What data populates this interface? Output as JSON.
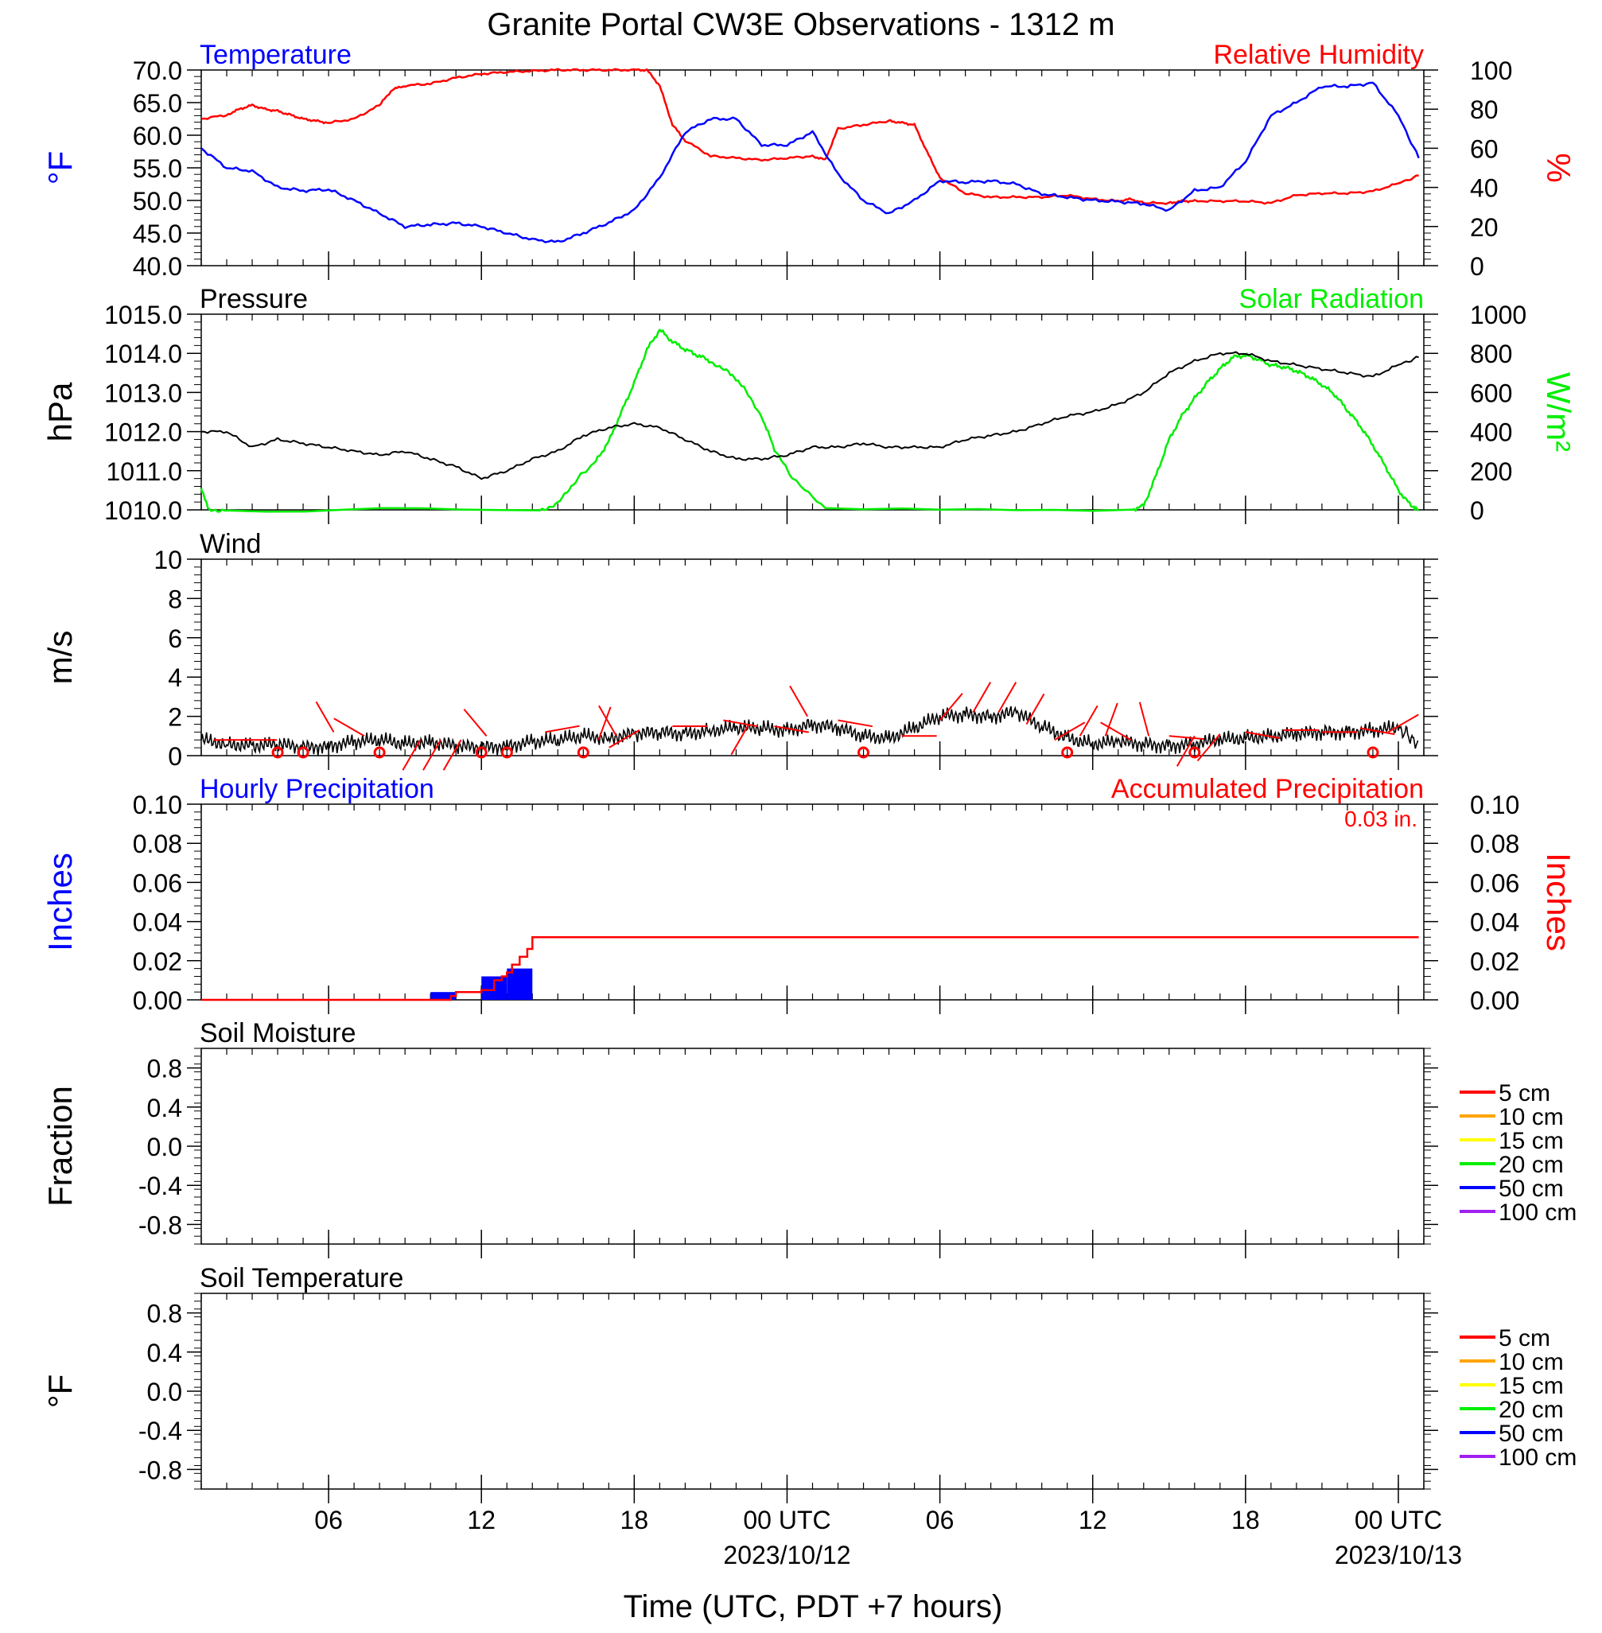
{
  "title": "Granite Portal CW3E Observations - 1312 m",
  "x_axis": {
    "title": "Time (UTC, PDT +7 hours)",
    "range_hours": [
      0,
      48
    ],
    "tick_labels": [
      {
        "hour": 5,
        "label": "06"
      },
      {
        "hour": 11,
        "label": "12"
      },
      {
        "hour": 17,
        "label": "18"
      },
      {
        "hour": 23,
        "label": "00 UTC",
        "date": "2023/10/12"
      },
      {
        "hour": 29,
        "label": "06"
      },
      {
        "hour": 35,
        "label": "12"
      },
      {
        "hour": 41,
        "label": "18"
      },
      {
        "hour": 47,
        "label": "00 UTC",
        "date": "2023/10/13"
      }
    ]
  },
  "colors": {
    "temperature": "#0000ff",
    "humidity": "#ff0000",
    "pressure": "#000000",
    "solar": "#00ee00",
    "wind": "#000000",
    "wind_barb": "#ff0000",
    "hourly_precip": "#0000ff",
    "accum_precip": "#ff0000"
  },
  "panels": {
    "temp_rh": {
      "left_title": "Temperature",
      "right_title": "Relative Humidity",
      "left_ylabel": "°F",
      "right_ylabel": "%",
      "left_ticks": [
        "70.0",
        "65.0",
        "60.0",
        "55.0",
        "50.0",
        "45.0",
        "40.0"
      ],
      "right_ticks": [
        "100",
        "80",
        "60",
        "40",
        "20",
        "0"
      ]
    },
    "pressure_solar": {
      "left_title": "Pressure",
      "right_title": "Solar Radiation",
      "left_ylabel": "hPa",
      "right_ylabel": "W/m²",
      "left_ticks": [
        "1015.0",
        "1014.0",
        "1013.0",
        "1012.0",
        "1011.0",
        "1010.0"
      ],
      "right_ticks": [
        "1000",
        "800",
        "600",
        "400",
        "200",
        "0"
      ]
    },
    "wind": {
      "left_title": "Wind",
      "left_ylabel": "m/s",
      "left_ticks": [
        "10",
        "8",
        "6",
        "4",
        "2",
        "0"
      ]
    },
    "precip": {
      "left_title": "Hourly Precipitation",
      "right_title": "Accumulated Precipitation",
      "total_label": "0.03 in.",
      "left_ylabel": "Inches",
      "right_ylabel": "Inches",
      "left_ticks": [
        "0.10",
        "0.08",
        "0.06",
        "0.04",
        "0.02",
        "0.00"
      ],
      "right_ticks": [
        "0.10",
        "0.08",
        "0.06",
        "0.04",
        "0.02",
        "0.00"
      ]
    },
    "soil_moisture": {
      "left_title": "Soil Moisture",
      "left_ylabel": "Fraction",
      "left_ticks": [
        "0.8",
        "0.4",
        "0.0",
        "-0.4",
        "-0.8"
      ],
      "legend": [
        {
          "label": "5 cm",
          "color": "#ff0000"
        },
        {
          "label": "10 cm",
          "color": "#ffa500"
        },
        {
          "label": "15 cm",
          "color": "#ffff00"
        },
        {
          "label": "20 cm",
          "color": "#00ee00"
        },
        {
          "label": "50 cm",
          "color": "#0000ff"
        },
        {
          "label": "100 cm",
          "color": "#a020f0"
        }
      ]
    },
    "soil_temp": {
      "left_title": "Soil Temperature",
      "left_ylabel": "°F",
      "left_ticks": [
        "0.8",
        "0.4",
        "0.0",
        "-0.4",
        "-0.8"
      ],
      "legend": [
        {
          "label": "5 cm",
          "color": "#ff0000"
        },
        {
          "label": "10 cm",
          "color": "#ffa500"
        },
        {
          "label": "15 cm",
          "color": "#ffff00"
        },
        {
          "label": "20 cm",
          "color": "#00ee00"
        },
        {
          "label": "50 cm",
          "color": "#0000ff"
        },
        {
          "label": "100 cm",
          "color": "#a020f0"
        }
      ]
    }
  },
  "chart_data": [
    {
      "type": "line",
      "panel": "temp_rh",
      "xlabel": "Time (UTC, PDT +7 hours)",
      "ylabel": "°F",
      "ylim": [
        40,
        70
      ],
      "series": [
        {
          "name": "Temperature",
          "axis": "left",
          "x": [
            0,
            1,
            2,
            3,
            4,
            5,
            6,
            7,
            8,
            9,
            10,
            11,
            12,
            13,
            14,
            15,
            16,
            17,
            18,
            19,
            20,
            21,
            22,
            23,
            24,
            25,
            26,
            27,
            28,
            29,
            30,
            31,
            32,
            33,
            34,
            35,
            36,
            37,
            38,
            39,
            40,
            41,
            42,
            43,
            44,
            45,
            46,
            47,
            47.8
          ],
          "y": [
            58,
            55,
            54.5,
            52,
            51.5,
            51.7,
            50,
            48,
            46,
            46.3,
            46.5,
            46,
            45,
            44,
            43.6,
            45,
            46.6,
            48.5,
            53.5,
            60.5,
            62.5,
            62.5,
            58.5,
            58.5,
            60.5,
            54,
            50,
            48,
            50,
            53,
            52.8,
            53,
            52.5,
            51,
            50.5,
            50,
            49.8,
            49.5,
            48.5,
            51.5,
            52,
            56,
            63,
            65,
            67.5,
            67.5,
            68,
            63,
            56.5
          ]
        },
        {
          "name": "Relative Humidity",
          "axis": "right",
          "ylim": [
            0,
            100
          ],
          "x": [
            0,
            1,
            1.5,
            2,
            2.5,
            3,
            3.5,
            4,
            4.5,
            5,
            6,
            7,
            7.5,
            8,
            9,
            10,
            11,
            12,
            13,
            14,
            15,
            16,
            17,
            17.5,
            18,
            18.5,
            19,
            20,
            21,
            22,
            23,
            24,
            24.5,
            25,
            26,
            27,
            27.5,
            28,
            28.5,
            29,
            30,
            31,
            32,
            33,
            34,
            35,
            36,
            36.5,
            37,
            38,
            38.5,
            39,
            40,
            41,
            42,
            43,
            44,
            45,
            46,
            47,
            47.8
          ],
          "y": [
            75,
            77,
            80,
            82,
            80,
            79,
            77,
            75,
            74,
            73,
            75,
            82,
            90,
            92,
            93,
            96,
            98,
            99,
            99.5,
            100,
            100,
            100,
            100,
            100,
            92,
            72,
            64,
            56,
            55,
            54,
            55,
            56,
            54,
            70,
            72,
            74,
            73,
            72,
            58,
            45,
            37,
            35,
            35,
            35,
            36,
            34,
            33,
            34,
            32,
            32,
            33,
            33,
            33,
            33,
            32,
            36,
            37,
            37,
            38,
            42,
            46
          ]
        }
      ]
    },
    {
      "type": "line",
      "panel": "pressure_solar",
      "xlabel": "Time (UTC, PDT +7 hours)",
      "ylabel": "hPa",
      "ylim": [
        1010,
        1015
      ],
      "series": [
        {
          "name": "Pressure",
          "axis": "left",
          "x": [
            0,
            1,
            2,
            3,
            4,
            5,
            6,
            7,
            8,
            9,
            10,
            11,
            12,
            13,
            14,
            15,
            16,
            17,
            18,
            19,
            20,
            21,
            22,
            23,
            24,
            25,
            26,
            27,
            28,
            29,
            30,
            31,
            32,
            33,
            34,
            35,
            36,
            37,
            38,
            39,
            40,
            41,
            42,
            43,
            44,
            45,
            46,
            47,
            47.8
          ],
          "y": [
            1012,
            1012,
            1011.6,
            1011.8,
            1011.7,
            1011.6,
            1011.5,
            1011.4,
            1011.5,
            1011.3,
            1011.1,
            1010.8,
            1011,
            1011.3,
            1011.5,
            1011.9,
            1012.1,
            1012.2,
            1012.1,
            1011.8,
            1011.5,
            1011.3,
            1011.3,
            1011.4,
            1011.6,
            1011.6,
            1011.7,
            1011.6,
            1011.6,
            1011.6,
            1011.8,
            1011.9,
            1012,
            1012.2,
            1012.4,
            1012.5,
            1012.7,
            1013,
            1013.5,
            1013.8,
            1014,
            1014,
            1013.8,
            1013.7,
            1013.6,
            1013.5,
            1013.4,
            1013.7,
            1013.9
          ]
        },
        {
          "name": "Solar Radiation",
          "axis": "right",
          "ylim": [
            0,
            1000
          ],
          "x": [
            0,
            0.3,
            1,
            13.3,
            14,
            14.7,
            15.5,
            16,
            16.5,
            17,
            17.5,
            18,
            18.5,
            19,
            19.5,
            20,
            20.7,
            21.3,
            22,
            22.5,
            23.2,
            24.5,
            36.5,
            37,
            37.5,
            38,
            38.5,
            39,
            39.5,
            40,
            40.5,
            41,
            41.5,
            42,
            42.5,
            43,
            43.5,
            44,
            44.5,
            45,
            45.5,
            46,
            46.5,
            47,
            47.5,
            47.8
          ],
          "y": [
            110,
            0,
            0,
            0,
            30,
            150,
            250,
            350,
            500,
            650,
            820,
            920,
            860,
            820,
            790,
            760,
            700,
            620,
            480,
            310,
            160,
            0,
            0,
            20,
            180,
            360,
            480,
            570,
            650,
            720,
            780,
            790,
            770,
            740,
            730,
            710,
            680,
            640,
            590,
            510,
            430,
            330,
            220,
            100,
            20,
            0
          ]
        }
      ]
    },
    {
      "type": "line",
      "panel": "wind",
      "xlabel": "Time (UTC, PDT +7 hours)",
      "ylabel": "m/s",
      "ylim": [
        0,
        10
      ],
      "series": [
        {
          "name": "Wind",
          "x": [
            0,
            1,
            2,
            3,
            4,
            5,
            6,
            7,
            8,
            9,
            10,
            11,
            12,
            13,
            14,
            15,
            16,
            17,
            18,
            19,
            20,
            21,
            22,
            23,
            24,
            25,
            26,
            27,
            28,
            29,
            30,
            31,
            32,
            33,
            34,
            35,
            36,
            37,
            38,
            39,
            40,
            41,
            42,
            43,
            44,
            45,
            46,
            47,
            47.8
          ],
          "y": [
            0.8,
            0.6,
            0.5,
            0.6,
            0.4,
            0.5,
            0.7,
            0.8,
            0.6,
            0.7,
            0.5,
            0.4,
            0.5,
            0.7,
            0.8,
            1,
            0.9,
            1.1,
            1.2,
            1.1,
            1.3,
            1.4,
            1.4,
            1.3,
            1.6,
            1.4,
            1.0,
            0.9,
            1.4,
            2.0,
            2.1,
            2.0,
            2.2,
            1.5,
            0.9,
            0.6,
            0.7,
            0.6,
            0.5,
            0.6,
            0.8,
            0.9,
            1.0,
            1.1,
            1.2,
            1.2,
            1.3,
            1.4,
            0.6
          ]
        }
      ],
      "barbs": [
        {
          "x": 0.5,
          "speed": 0.8,
          "dir": 90
        },
        {
          "x": 1.6,
          "speed": 0.8,
          "dir": 90
        },
        {
          "x": 5.2,
          "speed": 1.2,
          "dir": 330
        },
        {
          "x": 6.4,
          "speed": 1.0,
          "dir": 300
        },
        {
          "x": 8.6,
          "speed": 0.8,
          "dir": 210
        },
        {
          "x": 9.4,
          "speed": 0.8,
          "dir": 210
        },
        {
          "x": 10.2,
          "speed": 0.8,
          "dir": 210
        },
        {
          "x": 11.2,
          "speed": 1.0,
          "dir": 320
        },
        {
          "x": 13.5,
          "speed": 1.2,
          "dir": 80
        },
        {
          "x": 15.6,
          "speed": 0.8,
          "dir": 20
        },
        {
          "x": 16.3,
          "speed": 1.0,
          "dir": 330
        },
        {
          "x": 17.2,
          "speed": 1.3,
          "dir": 240
        },
        {
          "x": 18.5,
          "speed": 1.5,
          "dir": 90
        },
        {
          "x": 20.5,
          "speed": 1.8,
          "dir": 100
        },
        {
          "x": 21.5,
          "speed": 1.6,
          "dir": 210
        },
        {
          "x": 22.5,
          "speed": 1.5,
          "dir": 100
        },
        {
          "x": 23.8,
          "speed": 2.0,
          "dir": 330
        },
        {
          "x": 25,
          "speed": 1.8,
          "dir": 100
        },
        {
          "x": 27.5,
          "speed": 1.0,
          "dir": 90
        },
        {
          "x": 29,
          "speed": 1.8,
          "dir": 40
        },
        {
          "x": 30.3,
          "speed": 2.2,
          "dir": 30
        },
        {
          "x": 31.3,
          "speed": 2.2,
          "dir": 30
        },
        {
          "x": 32.4,
          "speed": 1.6,
          "dir": 30
        },
        {
          "x": 33.5,
          "speed": 0.8,
          "dir": 60
        },
        {
          "x": 34.5,
          "speed": 1.0,
          "dir": 30
        },
        {
          "x": 35.5,
          "speed": 1.0,
          "dir": 20
        },
        {
          "x": 36.5,
          "speed": 0.8,
          "dir": 300
        },
        {
          "x": 37.2,
          "speed": 1.0,
          "dir": 345
        },
        {
          "x": 38,
          "speed": 1.0,
          "dir": 95
        },
        {
          "x": 39,
          "speed": 1.0,
          "dir": 210
        },
        {
          "x": 40,
          "speed": 1.1,
          "dir": 220
        },
        {
          "x": 41,
          "speed": 1.2,
          "dir": 100
        },
        {
          "x": 42.5,
          "speed": 1.3,
          "dir": 90
        },
        {
          "x": 44,
          "speed": 1.2,
          "dir": 90
        },
        {
          "x": 45.5,
          "speed": 1.4,
          "dir": 100
        },
        {
          "x": 46.6,
          "speed": 1.2,
          "dir": 60
        }
      ],
      "calm_x": [
        3,
        4,
        7,
        11,
        12,
        15,
        26,
        34,
        39,
        46
      ]
    },
    {
      "type": "bar",
      "panel": "precip",
      "xlabel": "Time (UTC, PDT +7 hours)",
      "ylabel": "Inches",
      "ylim": [
        0,
        0.1
      ],
      "series": [
        {
          "name": "Hourly Precipitation",
          "bars": [
            {
              "x0": 9,
              "x1": 10,
              "value": 0.004
            },
            {
              "x0": 11,
              "x1": 12,
              "value": 0.012
            },
            {
              "x0": 12,
              "x1": 13,
              "value": 0.016
            }
          ]
        },
        {
          "name": "Accumulated Precipitation",
          "kind": "step",
          "x": [
            0,
            9.2,
            9.8,
            10,
            11,
            11.5,
            11.8,
            12,
            12.2,
            12.5,
            12.8,
            13,
            47.8
          ],
          "y": [
            0,
            0,
            0.002,
            0.004,
            0.005,
            0.01,
            0.012,
            0.014,
            0.018,
            0.022,
            0.026,
            0.032,
            0.032
          ]
        }
      ]
    }
  ]
}
